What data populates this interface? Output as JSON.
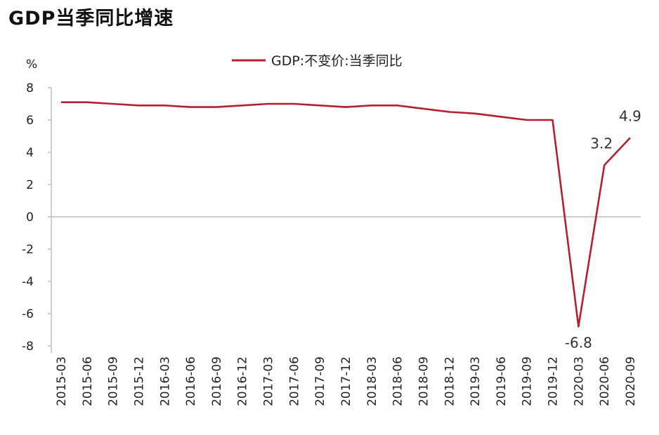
{
  "title": "GDP当季同比增速",
  "chart_data": {
    "type": "line",
    "title": "GDP当季同比增速",
    "xlabel": "",
    "ylabel": "%",
    "ylim": [
      -8,
      8
    ],
    "yticks": [
      8,
      6,
      4,
      2,
      0,
      -2,
      -4,
      -6,
      -8
    ],
    "grid": false,
    "legend_position": "top-center",
    "colors": {
      "series": "#b3202f",
      "axis": "#bfbfbf"
    },
    "categories": [
      "2015-03",
      "2015-06",
      "2015-09",
      "2015-12",
      "2016-03",
      "2016-06",
      "2016-09",
      "2016-12",
      "2017-03",
      "2017-06",
      "2017-09",
      "2017-12",
      "2018-03",
      "2018-06",
      "2018-09",
      "2018-12",
      "2019-03",
      "2019-06",
      "2019-09",
      "2019-12",
      "2020-03",
      "2020-06",
      "2020-09"
    ],
    "series": [
      {
        "name": "GDP:不变价:当季同比",
        "values": [
          7.1,
          7.1,
          7.0,
          6.9,
          6.9,
          6.8,
          6.8,
          6.9,
          7.0,
          7.0,
          6.9,
          6.8,
          6.9,
          6.9,
          6.7,
          6.5,
          6.4,
          6.2,
          6.0,
          6.0,
          -6.8,
          3.2,
          4.9
        ]
      }
    ],
    "annotations": [
      {
        "category": "2020-03",
        "text": "-6.8"
      },
      {
        "category": "2020-06",
        "text": "3.2"
      },
      {
        "category": "2020-09",
        "text": "4.9"
      }
    ]
  }
}
